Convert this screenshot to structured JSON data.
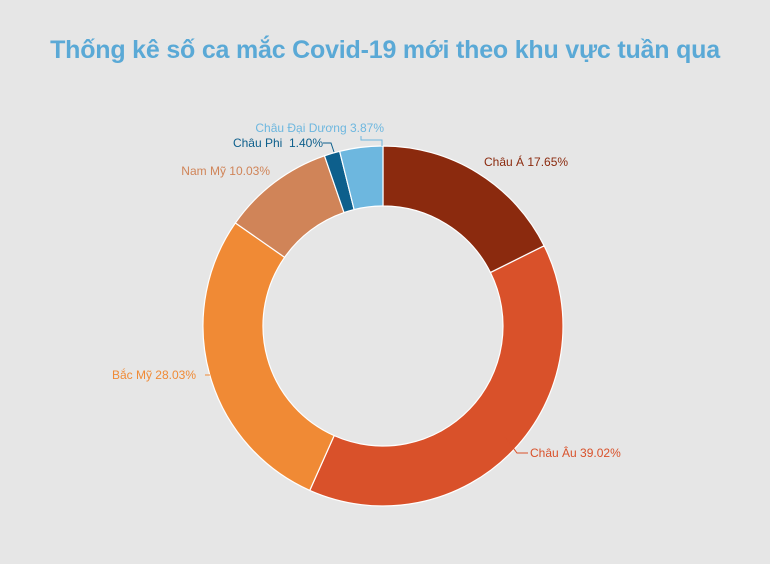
{
  "title": "Thống kê số ca mắc Covid-19 mới theo khu vực tuần qua",
  "chart_data": {
    "type": "pie",
    "donut": true,
    "title": "Thống kê số ca mắc Covid-19 mới theo khu vực tuần qua",
    "categories": [
      "Châu Á",
      "Châu Âu",
      "Bắc Mỹ",
      "Nam Mỹ",
      "Châu Phi",
      "Châu Đại Dương"
    ],
    "values": [
      17.65,
      39.02,
      28.03,
      10.03,
      1.4,
      3.87
    ],
    "labels": [
      "Châu Á 17.65%",
      "Châu Âu 39.02%",
      "Bắc Mỹ 28.03%",
      "Nam Mỹ 10.03%",
      "Châu Phi  1.40%",
      "Châu Đại Dương 3.87%"
    ],
    "colors": [
      "#8b2a0e",
      "#d9512a",
      "#f08a35",
      "#d08458",
      "#0d5f8c",
      "#6db7df"
    ],
    "label_colors": [
      "#8b2a0e",
      "#d9512a",
      "#f08a35",
      "#d08458",
      "#0d5f8c",
      "#6db7df"
    ],
    "grid": false,
    "legend": "none"
  }
}
